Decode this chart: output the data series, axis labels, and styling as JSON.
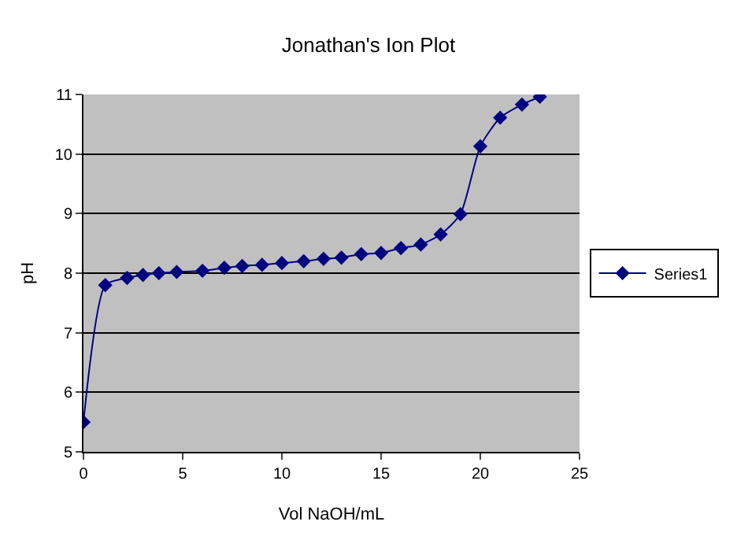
{
  "chart_data": {
    "type": "line",
    "title": "Jonathan's Ion Plot",
    "xlabel": "Vol NaOH/mL",
    "ylabel": "pH",
    "xlim": [
      0,
      25
    ],
    "xticks": [
      0,
      5,
      10,
      15,
      20,
      25
    ],
    "ylim": [
      5,
      11
    ],
    "yticks": [
      5,
      6,
      7,
      8,
      9,
      10,
      11
    ],
    "grid": "y",
    "legend": "right",
    "marker": "diamond",
    "line_style": "solid",
    "series": [
      {
        "name": "Series1",
        "color": "#000080",
        "x": [
          0,
          1.1,
          2.2,
          3,
          3.8,
          4.7,
          6,
          7.1,
          8,
          9,
          10,
          11.1,
          12.1,
          13,
          14,
          15,
          16,
          17,
          18,
          19,
          20,
          21,
          22.1,
          23
        ],
        "values": [
          5.5,
          7.8,
          7.92,
          7.97,
          8,
          8.02,
          8.04,
          8.09,
          8.12,
          8.14,
          8.17,
          8.2,
          8.24,
          8.26,
          8.32,
          8.34,
          8.42,
          8.48,
          8.65,
          8.99,
          10.13,
          10.61,
          10.83,
          10.96
        ]
      }
    ]
  }
}
